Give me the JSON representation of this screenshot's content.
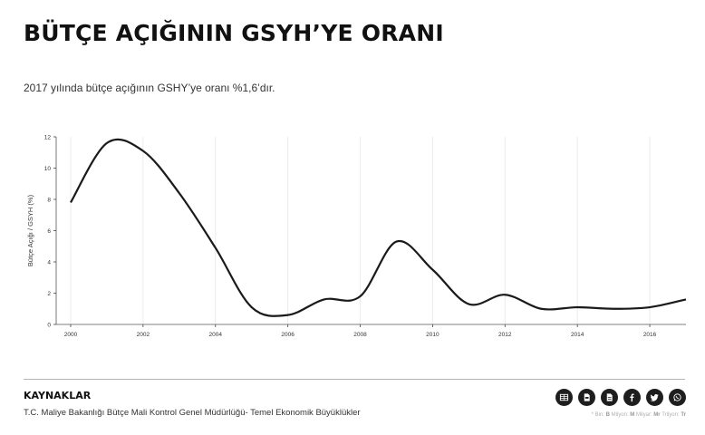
{
  "header": {
    "title": "BÜTÇE AÇIĞININ GSYH’YE ORANI",
    "subtitle": "2017 yılında bütçe açığının GSHY’ye oranı %1,6’dır."
  },
  "chart_data": {
    "type": "line",
    "ylabel": "Bütçe Açığı / GSYH (%)",
    "xlabel": "",
    "xlim": [
      1999.6,
      2017
    ],
    "ylim": [
      0,
      12
    ],
    "x_ticks": [
      "2000",
      "2002",
      "2004",
      "2006",
      "2008",
      "2010",
      "2012",
      "2014",
      "2016"
    ],
    "y_ticks": [
      "0",
      "2",
      "4",
      "6",
      "8",
      "10",
      "12"
    ],
    "grid": true,
    "line_color": "#1a1a1a",
    "series": [
      {
        "x": [
          2000,
          2001,
          2002,
          2003,
          2004,
          2005,
          2006,
          2007,
          2008,
          2009,
          2010,
          2011,
          2012,
          2013,
          2014,
          2015,
          2016,
          2017
        ],
        "values": [
          7.8,
          11.6,
          11.1,
          8.4,
          4.9,
          1.1,
          0.6,
          1.6,
          1.8,
          5.3,
          3.5,
          1.3,
          1.9,
          1.0,
          1.1,
          1.0,
          1.1,
          1.6
        ]
      }
    ]
  },
  "footer": {
    "sources_heading": "KAYNAKLAR",
    "sources_text": "T.C. Maliye Bakanlığı Bütçe Mali Kontrol Genel Müdürlüğü- Temel Ekonomik Büyüklükler",
    "legend_prefix": "* Bin: ",
    "legend_b": "B",
    "legend_m_label": " Milyon: ",
    "legend_m": "M",
    "legend_mr_label": " Milyar: ",
    "legend_mr": "Mr",
    "legend_tr_label": " Trilyon: ",
    "legend_tr": "Tr"
  },
  "share_icons": [
    "table-icon",
    "pdf-icon",
    "document-icon",
    "facebook-icon",
    "twitter-icon",
    "whatsapp-icon"
  ]
}
